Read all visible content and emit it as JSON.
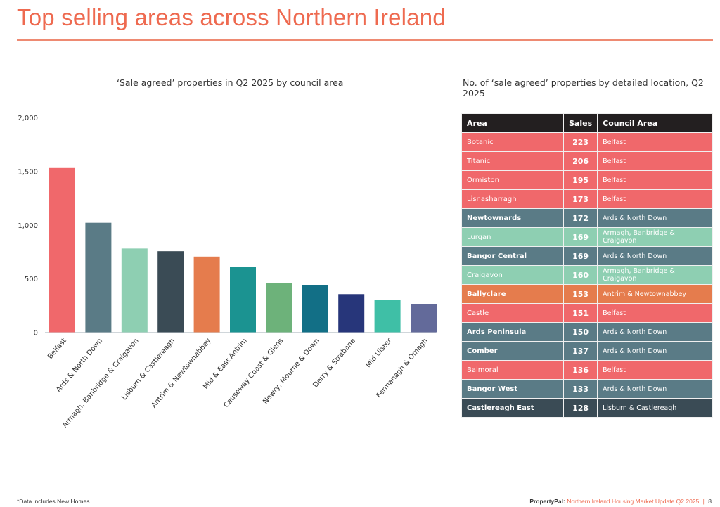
{
  "page": {
    "title": "Top selling areas across Northern Ireland",
    "footnote": "*Data includes New Homes",
    "footer_brand": "PropertyPal:",
    "footer_report": "Northern Ireland Housing Market Update Q2 2025",
    "footer_separator": "|",
    "page_number": "8"
  },
  "chart_data": {
    "type": "bar",
    "title": "‘Sale agreed’ properties in Q2 2025 by council area",
    "xlabel": "",
    "ylabel": "",
    "ylim": [
      0,
      2000
    ],
    "yticks": [
      0,
      500,
      1000,
      1500,
      2000
    ],
    "ytick_labels": [
      "0",
      "500",
      "1,000",
      "1,500",
      "2,000"
    ],
    "grid": false,
    "legend": "none",
    "categories": [
      "Belfast",
      "Ards & North Down",
      "Armagh, Banbridge & Craigavon",
      "Lisburn & Castlereagh",
      "Antrim & Newtownabbey",
      "Mid & East Antrim",
      "Causeway Coast & Glens",
      "Newry, Mourne & Down",
      "Derry & Strabane",
      "Mid Ulster",
      "Fermanagh & Omagh"
    ],
    "values": [
      1530,
      1020,
      780,
      755,
      705,
      610,
      455,
      440,
      355,
      300,
      260
    ],
    "colors": [
      "#f0686b",
      "#5a7b86",
      "#8ecfb2",
      "#3a4b55",
      "#e57c4d",
      "#1b9391",
      "#6db27a",
      "#126f86",
      "#27367a",
      "#3fbfa6",
      "#636a9a"
    ]
  },
  "table": {
    "title": "No. of ‘sale agreed’ properties by detailed location, Q2 2025",
    "headers": [
      "Area",
      "Sales",
      "Council Area"
    ],
    "rows": [
      {
        "area": "Botanic",
        "sales": "223",
        "council": "Belfast",
        "color": "#f0686b"
      },
      {
        "area": "Titanic",
        "sales": "206",
        "council": "Belfast",
        "color": "#f0686b"
      },
      {
        "area": "Ormiston",
        "sales": "195",
        "council": "Belfast",
        "color": "#f0686b"
      },
      {
        "area": "Lisnasharragh",
        "sales": "173",
        "council": "Belfast",
        "color": "#f0686b"
      },
      {
        "area": "Newtownards",
        "sales": "172",
        "council": "Ards & North Down",
        "color": "#5a7b86"
      },
      {
        "area": "Lurgan",
        "sales": "169",
        "council": "Armagh, Banbridge & Craigavon",
        "color": "#8ecfb2"
      },
      {
        "area": "Bangor Central",
        "sales": "169",
        "council": "Ards & North Down",
        "color": "#5a7b86"
      },
      {
        "area": "Craigavon",
        "sales": "160",
        "council": "Armagh, Banbridge & Craigavon",
        "color": "#8ecfb2"
      },
      {
        "area": "Ballyclare",
        "sales": "153",
        "council": "Antrim & Newtownabbey",
        "color": "#e57c4d"
      },
      {
        "area": "Castle",
        "sales": "151",
        "council": "Belfast",
        "color": "#f0686b"
      },
      {
        "area": "Ards Peninsula",
        "sales": "150",
        "council": "Ards & North Down",
        "color": "#5a7b86"
      },
      {
        "area": "Comber",
        "sales": "137",
        "council": "Ards & North Down",
        "color": "#5a7b86"
      },
      {
        "area": "Balmoral",
        "sales": "136",
        "council": "Belfast",
        "color": "#f0686b"
      },
      {
        "area": "Bangor West",
        "sales": "133",
        "council": "Ards & North Down",
        "color": "#5a7b86"
      },
      {
        "area": "Castlereagh East",
        "sales": "128",
        "council": "Lisburn & Castlereagh",
        "color": "#3a4b55"
      }
    ]
  }
}
